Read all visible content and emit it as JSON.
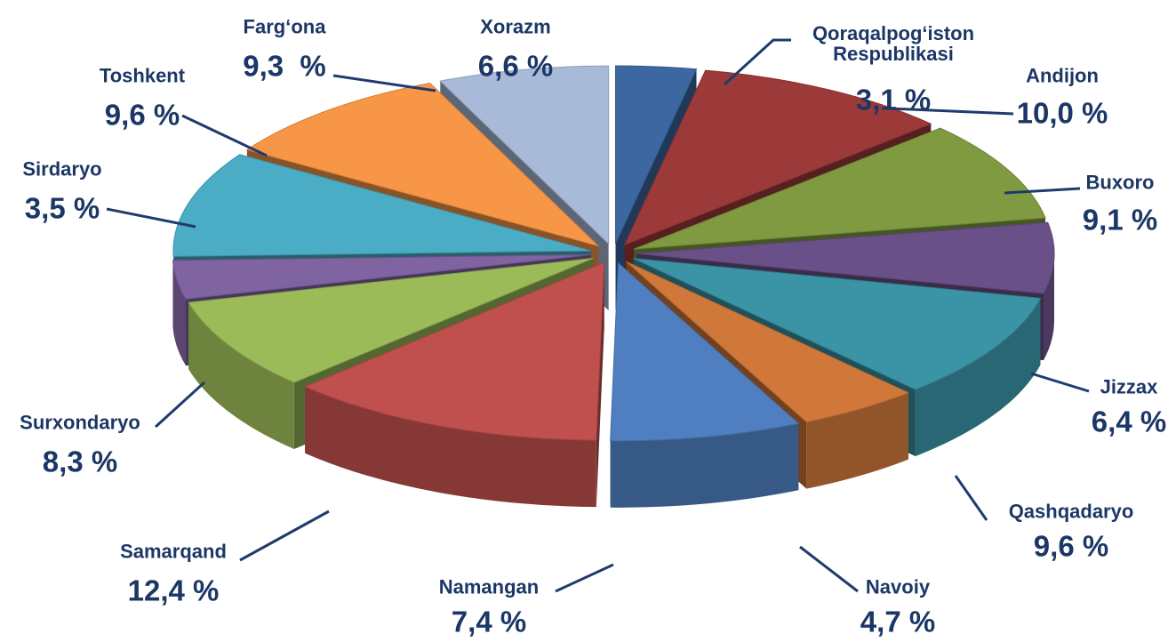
{
  "chart_data": {
    "type": "pie",
    "categories": [
      "Qoraqalpog‘iston Respublikasi",
      "Andijon",
      "Buxoro",
      "Jizzax",
      "Qashqadaryo",
      "Navoiy",
      "Namangan",
      "Samarqand",
      "Surxondaryo",
      "Sirdaryo",
      "Toshkent",
      "Farg‘ona",
      "Xorazm"
    ],
    "values": [
      3.1,
      10.0,
      9.1,
      6.4,
      9.6,
      4.7,
      7.4,
      12.4,
      8.3,
      3.5,
      9.6,
      9.3,
      6.6
    ],
    "value_labels": [
      "3,1 %",
      "10,0 %",
      "9,1 %",
      "6,4 %",
      "9,6 %",
      "4,7 %",
      "7,4 %",
      "12,4 %",
      "8,3 %",
      "3,5 %",
      "9,6 %",
      "9,3  %",
      "6,6 %"
    ],
    "colors": [
      "#3c67a0",
      "#9b3a38",
      "#7f9a40",
      "#6a5088",
      "#3b93a6",
      "#d0783a",
      "#4f7fc0",
      "#c0504d",
      "#9bbb59",
      "#8064a2",
      "#4bacc6",
      "#f79646",
      "#a9b9d8"
    ],
    "exploded": true
  }
}
